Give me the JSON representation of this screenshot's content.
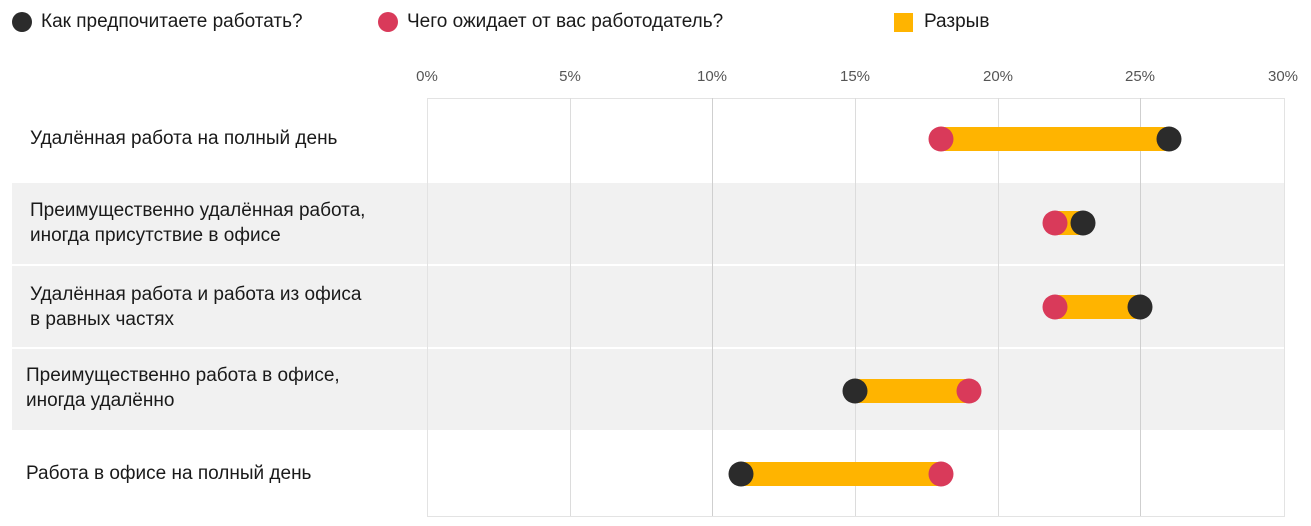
{
  "legend": {
    "preferred": {
      "label": "Как предпочитаете работать?",
      "color": "#2b2b2b"
    },
    "employer": {
      "label": "Чего ожидает от вас работодатель?",
      "color": "#d93a5a"
    },
    "gap": {
      "label": "Разрыв",
      "color": "#ffb400"
    }
  },
  "axis": {
    "ticks": [
      "0%",
      "5%",
      "10%",
      "15%",
      "20%",
      "25%",
      "30%"
    ]
  },
  "rows": [
    {
      "label_line1": "Удалённая работа на полный день",
      "label_line2": ""
    },
    {
      "label_line1": "Преимущественно удалённая работа,",
      "label_line2": "иногда присутствие в офисе"
    },
    {
      "label_line1": "Удалённая работа и работа из офиса",
      "label_line2": "в равных частях"
    },
    {
      "label_line1": "Преимущественно работа в офисе,",
      "label_line2": "иногда удалённо"
    },
    {
      "label_line1": "Работа в офисе на полный день",
      "label_line2": ""
    }
  ],
  "chart_data": {
    "type": "dumbbell",
    "title": "",
    "xlabel": "",
    "ylabel": "",
    "xlim": [
      0,
      30
    ],
    "x_ticks": [
      "0%",
      "5%",
      "10%",
      "15%",
      "20%",
      "25%",
      "30%"
    ],
    "grid": true,
    "legend_position": "top",
    "categories": [
      "Удалённая работа на полный день",
      "Преимущественно удалённая работа, иногда присутствие в офисе",
      "Удалённая работа и работа из офиса в равных частях",
      "Преимущественно работа в офисе, иногда удалённо",
      "Работа в офисе на полный день"
    ],
    "series": [
      {
        "name": "Как предпочитаете работать?",
        "color": "#2b2b2b",
        "values": [
          26,
          23,
          25,
          15,
          11
        ]
      },
      {
        "name": "Чего ожидает от вас работодатель?",
        "color": "#d93a5a",
        "values": [
          18,
          22,
          22,
          19,
          18
        ]
      }
    ],
    "gap_series": {
      "name": "Разрыв",
      "color": "#ffb400"
    }
  }
}
